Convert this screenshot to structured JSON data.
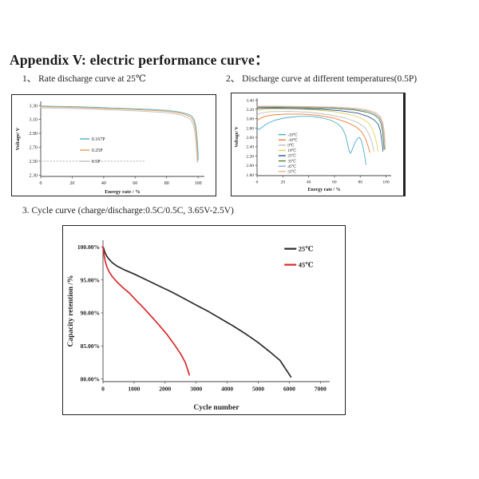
{
  "page": {
    "title": "Appendix V: electric performance curve："
  },
  "sections": {
    "s1": "1、 Rate discharge curve at 25℃",
    "s2": "2、 Discharge curve at different temperatures(0.5P)",
    "s3": "3. Cycle curve (charge/discharge:0.5C/0.5C, 3.65V-2.5V)"
  },
  "chart_data": [
    {
      "type": "line",
      "title": "Rate discharge curve at 25℃",
      "xlabel": "Energy rate / %",
      "ylabel": "Voltage/ V",
      "xlim": [
        0,
        104
      ],
      "ylim": [
        2.28,
        3.36
      ],
      "xticks": [
        0,
        20,
        40,
        60,
        80,
        100
      ],
      "xtick_labels": [
        "0",
        "20",
        "40",
        "60",
        "80",
        "100"
      ],
      "yticks": [
        2.3,
        2.5,
        2.7,
        2.9,
        3.1,
        3.3
      ],
      "ytick_labels": [
        "2.30",
        "2.50",
        "2.70",
        "2.90",
        "3.10",
        "3.30"
      ],
      "grid": false,
      "legend_position": "center-left",
      "series": [
        {
          "name": "0.167P",
          "color": "#5fb4c9",
          "points": [
            [
              0,
              3.295
            ],
            [
              6,
              3.29
            ],
            [
              14,
              3.287
            ],
            [
              24,
              3.282
            ],
            [
              34,
              3.275
            ],
            [
              44,
              3.266
            ],
            [
              54,
              3.258
            ],
            [
              64,
              3.25
            ],
            [
              72,
              3.242
            ],
            [
              80,
              3.23
            ],
            [
              86,
              3.215
            ],
            [
              90,
              3.198
            ],
            [
              93,
              3.18
            ],
            [
              95,
              3.162
            ],
            [
              96.5,
              3.135
            ],
            [
              97.6,
              3.09
            ],
            [
              98.4,
              3.02
            ],
            [
              99,
              2.93
            ],
            [
              99.5,
              2.8
            ],
            [
              99.9,
              2.64
            ],
            [
              100.1,
              2.52
            ]
          ]
        },
        {
          "name": "0.25P",
          "color": "#f0a05a",
          "points": [
            [
              0,
              3.284
            ],
            [
              6,
              3.28
            ],
            [
              14,
              3.276
            ],
            [
              24,
              3.271
            ],
            [
              34,
              3.264
            ],
            [
              44,
              3.255
            ],
            [
              54,
              3.247
            ],
            [
              64,
              3.238
            ],
            [
              72,
              3.229
            ],
            [
              80,
              3.217
            ],
            [
              86,
              3.2
            ],
            [
              90,
              3.183
            ],
            [
              92.5,
              3.166
            ],
            [
              94.5,
              3.148
            ],
            [
              96,
              3.12
            ],
            [
              97.2,
              3.07
            ],
            [
              98,
              3.0
            ],
            [
              98.7,
              2.9
            ],
            [
              99.2,
              2.76
            ],
            [
              99.6,
              2.6
            ],
            [
              99.8,
              2.5
            ]
          ]
        },
        {
          "name": "0.5P",
          "color": "#c6c6c6",
          "points": [
            [
              0,
              3.268
            ],
            [
              6,
              3.263
            ],
            [
              14,
              3.259
            ],
            [
              24,
              3.254
            ],
            [
              34,
              3.247
            ],
            [
              44,
              3.238
            ],
            [
              54,
              3.229
            ],
            [
              64,
              3.219
            ],
            [
              72,
              3.209
            ],
            [
              80,
              3.196
            ],
            [
              86,
              3.179
            ],
            [
              89.5,
              3.161
            ],
            [
              92,
              3.142
            ],
            [
              94,
              3.12
            ],
            [
              95.5,
              3.09
            ],
            [
              96.7,
              3.04
            ],
            [
              97.6,
              2.96
            ],
            [
              98.3,
              2.85
            ],
            [
              98.9,
              2.7
            ],
            [
              99.3,
              2.55
            ],
            [
              99.5,
              2.48
            ]
          ]
        },
        {
          "name": "",
          "color": "#b5b5b5",
          "dash": true,
          "legend": false,
          "points": [
            [
              0,
              2.5
            ],
            [
              66,
              2.5
            ]
          ]
        }
      ]
    },
    {
      "type": "line",
      "title": "Discharge curve at different temperatures(0.5P)",
      "xlabel": "Energy rate / %",
      "ylabel": "Voltage/ V",
      "xlim": [
        0,
        104
      ],
      "ylim": [
        1.78,
        3.44
      ],
      "xticks": [
        0,
        20,
        40,
        60,
        80,
        100
      ],
      "xtick_labels": [
        "0",
        "20",
        "40",
        "60",
        "80",
        "100"
      ],
      "yticks": [
        1.8,
        2.0,
        2.2,
        2.4,
        2.6,
        2.8,
        3.0,
        3.2,
        3.4
      ],
      "ytick_labels": [
        "1.80",
        "2.00",
        "2.20",
        "2.40",
        "2.60",
        "2.80",
        "3.00",
        "3.20",
        "3.40"
      ],
      "grid": false,
      "legend_position": "center-left",
      "series": [
        {
          "name": "-20℃",
          "color": "#4bacc6",
          "points": [
            [
              0,
              2.8
            ],
            [
              1.5,
              2.77
            ],
            [
              4,
              2.82
            ],
            [
              8,
              2.9
            ],
            [
              14,
              2.97
            ],
            [
              22,
              3.02
            ],
            [
              32,
              3.05
            ],
            [
              42,
              3.05
            ],
            [
              50,
              3.02
            ],
            [
              57,
              2.97
            ],
            [
              62,
              2.9
            ],
            [
              66,
              2.8
            ],
            [
              68.5,
              2.65
            ],
            [
              70,
              2.48
            ],
            [
              71.5,
              2.3
            ],
            [
              72.5,
              2.26
            ],
            [
              74,
              2.35
            ],
            [
              76,
              2.5
            ],
            [
              78,
              2.58
            ],
            [
              79.5,
              2.6
            ],
            [
              81,
              2.53
            ],
            [
              82.5,
              2.35
            ],
            [
              83.5,
              2.18
            ],
            [
              84.5,
              2.02
            ]
          ]
        },
        {
          "name": "-10℃",
          "color": "#ed7d31",
          "points": [
            [
              0,
              2.96
            ],
            [
              2,
              3.0
            ],
            [
              6,
              3.05
            ],
            [
              12,
              3.08
            ],
            [
              22,
              3.1
            ],
            [
              35,
              3.1
            ],
            [
              48,
              3.07
            ],
            [
              60,
              3.01
            ],
            [
              70,
              2.92
            ],
            [
              77,
              2.82
            ],
            [
              81,
              2.72
            ],
            [
              84,
              2.58
            ],
            [
              86,
              2.42
            ],
            [
              87.5,
              2.28
            ]
          ]
        },
        {
          "name": "0℃",
          "color": "#bfbfbf",
          "points": [
            [
              0,
              3.08
            ],
            [
              3,
              3.12
            ],
            [
              10,
              3.15
            ],
            [
              25,
              3.16
            ],
            [
              40,
              3.14
            ],
            [
              55,
              3.09
            ],
            [
              68,
              3.02
            ],
            [
              78,
              2.92
            ],
            [
              84,
              2.8
            ],
            [
              87,
              2.66
            ],
            [
              89,
              2.5
            ],
            [
              90,
              2.38
            ],
            [
              90.5,
              2.3
            ]
          ]
        },
        {
          "name": "10℃",
          "color": "#e6d24f",
          "points": [
            [
              0,
              3.18
            ],
            [
              5,
              3.2
            ],
            [
              15,
              3.21
            ],
            [
              30,
              3.21
            ],
            [
              45,
              3.19
            ],
            [
              60,
              3.15
            ],
            [
              72,
              3.09
            ],
            [
              80,
              3.02
            ],
            [
              86,
              2.92
            ],
            [
              89.5,
              2.78
            ],
            [
              91.5,
              2.62
            ],
            [
              93,
              2.45
            ],
            [
              93.8,
              2.3
            ]
          ]
        },
        {
          "name": "25℃",
          "color": "#2e5597",
          "points": [
            [
              0,
              3.22
            ],
            [
              10,
              3.23
            ],
            [
              30,
              3.22
            ],
            [
              50,
              3.2
            ],
            [
              65,
              3.17
            ],
            [
              78,
              3.12
            ],
            [
              86,
              3.05
            ],
            [
              91,
              2.97
            ],
            [
              94,
              2.88
            ],
            [
              95.5,
              2.75
            ],
            [
              96.5,
              2.58
            ],
            [
              97.2,
              2.42
            ],
            [
              97.6,
              2.3
            ]
          ]
        },
        {
          "name": "35℃",
          "color": "#548135",
          "points": [
            [
              0,
              3.24
            ],
            [
              15,
              3.245
            ],
            [
              40,
              3.235
            ],
            [
              60,
              3.22
            ],
            [
              75,
              3.19
            ],
            [
              85,
              3.14
            ],
            [
              91,
              3.08
            ],
            [
              94.5,
              3.0
            ],
            [
              96.3,
              2.88
            ],
            [
              97.4,
              2.7
            ],
            [
              98.1,
              2.5
            ],
            [
              98.5,
              2.35
            ]
          ]
        },
        {
          "name": "45℃",
          "color": "#8faadc",
          "points": [
            [
              0,
              3.255
            ],
            [
              15,
              3.26
            ],
            [
              40,
              3.25
            ],
            [
              60,
              3.235
            ],
            [
              75,
              3.21
            ],
            [
              85,
              3.17
            ],
            [
              91,
              3.11
            ],
            [
              95,
              3.03
            ],
            [
              97,
              2.9
            ],
            [
              98.2,
              2.7
            ],
            [
              98.9,
              2.48
            ],
            [
              99.2,
              2.33
            ]
          ]
        },
        {
          "name": "55℃",
          "color": "#f4b183",
          "points": [
            [
              0,
              3.27
            ],
            [
              15,
              3.27
            ],
            [
              40,
              3.26
            ],
            [
              60,
              3.25
            ],
            [
              75,
              3.225
            ],
            [
              85,
              3.19
            ],
            [
              92,
              3.13
            ],
            [
              95.5,
              3.05
            ],
            [
              97.5,
              2.92
            ],
            [
              98.6,
              2.72
            ],
            [
              99.2,
              2.5
            ],
            [
              99.5,
              2.35
            ]
          ]
        }
      ]
    },
    {
      "type": "line",
      "title": "Cycle curve (charge/discharge:0.5C/0.5C, 3.65V-2.5V)",
      "xlabel": "Cycle number",
      "ylabel": "Capacity retention /%",
      "xlim": [
        0,
        7300
      ],
      "ylim": [
        79.6,
        101
      ],
      "xticks": [
        0,
        1000,
        2000,
        3000,
        4000,
        5000,
        6000,
        7000
      ],
      "xtick_labels": [
        "0",
        "1000",
        "2000",
        "3000",
        "4000",
        "5000",
        "6000",
        "7000"
      ],
      "yticks": [
        80,
        85,
        90,
        95,
        100
      ],
      "ytick_labels": [
        "80.00%",
        "85.00%",
        "90.00%",
        "95.00%",
        "100.00%"
      ],
      "grid": false,
      "legend_position": "top-right",
      "series": [
        {
          "name": "25℃",
          "color": "#2b2b2b",
          "points": [
            [
              0,
              100
            ],
            [
              20,
              99.8
            ],
            [
              60,
              99.2
            ],
            [
              120,
              98.6
            ],
            [
              200,
              98.1
            ],
            [
              300,
              97.6
            ],
            [
              450,
              97.1
            ],
            [
              700,
              96.5
            ],
            [
              1000,
              95.9
            ],
            [
              1400,
              95.0
            ],
            [
              1800,
              94.1
            ],
            [
              2200,
              93.2
            ],
            [
              2600,
              92.2
            ],
            [
              3000,
              91.2
            ],
            [
              3400,
              90.2
            ],
            [
              3800,
              89.1
            ],
            [
              4200,
              88.0
            ],
            [
              4600,
              86.8
            ],
            [
              5000,
              85.5
            ],
            [
              5400,
              84.0
            ],
            [
              5700,
              82.8
            ],
            [
              6050,
              80.3
            ]
          ]
        },
        {
          "name": "45℃",
          "color": "#d92b2b",
          "points": [
            [
              0,
              100
            ],
            [
              15,
              99.4
            ],
            [
              40,
              98.6
            ],
            [
              80,
              97.7
            ],
            [
              130,
              96.9
            ],
            [
              200,
              96.2
            ],
            [
              300,
              95.5
            ],
            [
              450,
              94.7
            ],
            [
              650,
              93.8
            ],
            [
              850,
              93.0
            ],
            [
              1050,
              92.0
            ],
            [
              1300,
              90.8
            ],
            [
              1550,
              89.5
            ],
            [
              1800,
              88.2
            ],
            [
              2050,
              86.8
            ],
            [
              2300,
              85.2
            ],
            [
              2500,
              83.8
            ],
            [
              2650,
              82.5
            ],
            [
              2780,
              80.6
            ]
          ]
        }
      ]
    }
  ]
}
